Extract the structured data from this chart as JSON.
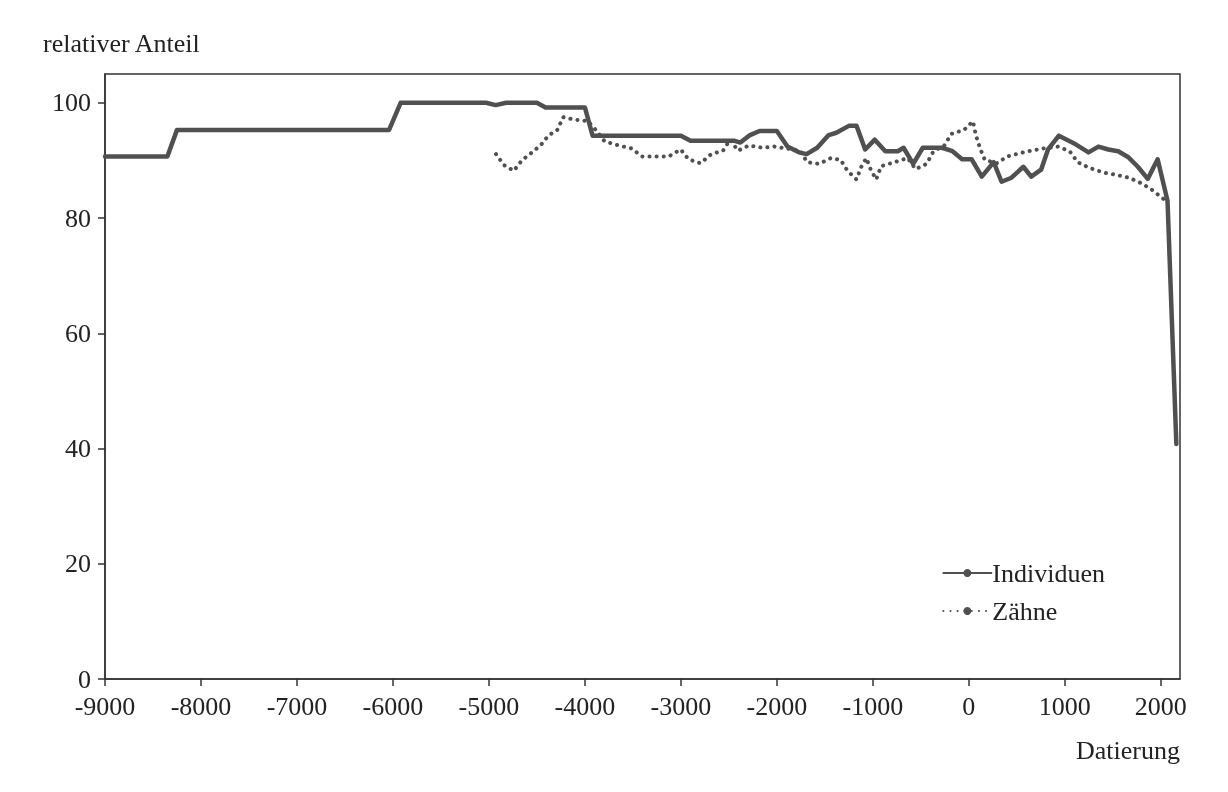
{
  "chart_data": {
    "type": "line",
    "ylabel": "relativer Anteil",
    "xlabel": "Datierung",
    "xlim": [
      -9000,
      2200
    ],
    "xticks": [
      -9000,
      -8000,
      -7000,
      -6000,
      -5000,
      -4000,
      -3000,
      -2000,
      -1000,
      0,
      1000,
      2000
    ],
    "ylim": [
      0,
      105
    ],
    "yticks": [
      0,
      20,
      40,
      60,
      80,
      100
    ],
    "grid": false,
    "legend": "bottom right",
    "marker": "none",
    "series": [
      {
        "name": "Individuen",
        "color": "#505050",
        "line_style": "solid",
        "x": [
          -9000,
          -8350,
          -8250,
          -6040,
          -5920,
          -5030,
          -4930,
          -4820,
          -4500,
          -4410,
          -4000,
          -3920,
          -3000,
          -2900,
          -2440,
          -2380,
          -2280,
          -2180,
          -2000,
          -1890,
          -1770,
          -1690,
          -1580,
          -1460,
          -1380,
          -1250,
          -1170,
          -1080,
          -980,
          -870,
          -740,
          -680,
          -580,
          -480,
          -280,
          -170,
          -70,
          30,
          135,
          259,
          341,
          444,
          568,
          650,
          753,
          825,
          938,
          1113,
          1247,
          1350,
          1453,
          1556,
          1658,
          1761,
          1864,
          1967,
          2070,
          2162
        ],
        "values": [
          90.7,
          90.7,
          95.3,
          95.3,
          100,
          100,
          99.6,
          100,
          100,
          99.2,
          99.2,
          94.3,
          94.3,
          93.4,
          93.4,
          93.1,
          94.4,
          95.1,
          95.1,
          92.4,
          91.4,
          91.1,
          92.2,
          94.4,
          94.8,
          96,
          96,
          91.9,
          93.6,
          91.6,
          91.6,
          92.2,
          89.4,
          92.2,
          92.2,
          91.6,
          90.2,
          90.2,
          87.2,
          89.7,
          86.3,
          87,
          88.9,
          87.2,
          88.4,
          91.9,
          94.3,
          92.8,
          91.4,
          92.4,
          91.9,
          91.6,
          90.6,
          88.9,
          86.8,
          90.2,
          83,
          40.8
        ]
      },
      {
        "name": "Zähne",
        "color": "#505050",
        "line_style": "dotted",
        "x": [
          -4926,
          -4844,
          -4741,
          -4658,
          -4566,
          -4463,
          -4381,
          -4288,
          -4226,
          -4113,
          -3969,
          -3877,
          -3794,
          -3650,
          -3516,
          -3403,
          -3270,
          -3126,
          -3002,
          -2920,
          -2796,
          -2683,
          -2560,
          -2488,
          -2405,
          -2292,
          -2148,
          -2025,
          -1757,
          -1685,
          -1562,
          -1438,
          -1336,
          -1264,
          -1171,
          -1120,
          -1068,
          -1017,
          -965,
          -914,
          -636,
          -554,
          -440,
          -368,
          -255,
          -183,
          -50,
          43,
          73,
          115,
          166,
          290,
          403,
          516,
          650,
          784,
          928,
          1051,
          1134,
          1257,
          1401,
          1535,
          1669,
          1803,
          1916,
          2029
        ],
        "values": [
          91.1,
          89.2,
          88.2,
          90,
          91.2,
          92.6,
          94.3,
          95.3,
          97.5,
          97.1,
          96.8,
          95.1,
          93.3,
          92.6,
          92.1,
          90.7,
          90.7,
          90.7,
          91.9,
          90.2,
          89.5,
          91.1,
          91.7,
          93.6,
          91.7,
          92.6,
          92.2,
          92.4,
          91.7,
          89.7,
          89.4,
          90.4,
          90.1,
          88.2,
          86.7,
          88.9,
          90.4,
          88.2,
          86.7,
          89,
          90.4,
          88.5,
          89.4,
          91.6,
          92.6,
          94.6,
          95.3,
          96.8,
          94.4,
          92.2,
          90.1,
          89.5,
          90.7,
          91.2,
          91.7,
          92.1,
          92.4,
          91.6,
          89.7,
          88.7,
          87.9,
          87.5,
          87,
          86,
          84.8,
          83.3
        ]
      }
    ]
  }
}
